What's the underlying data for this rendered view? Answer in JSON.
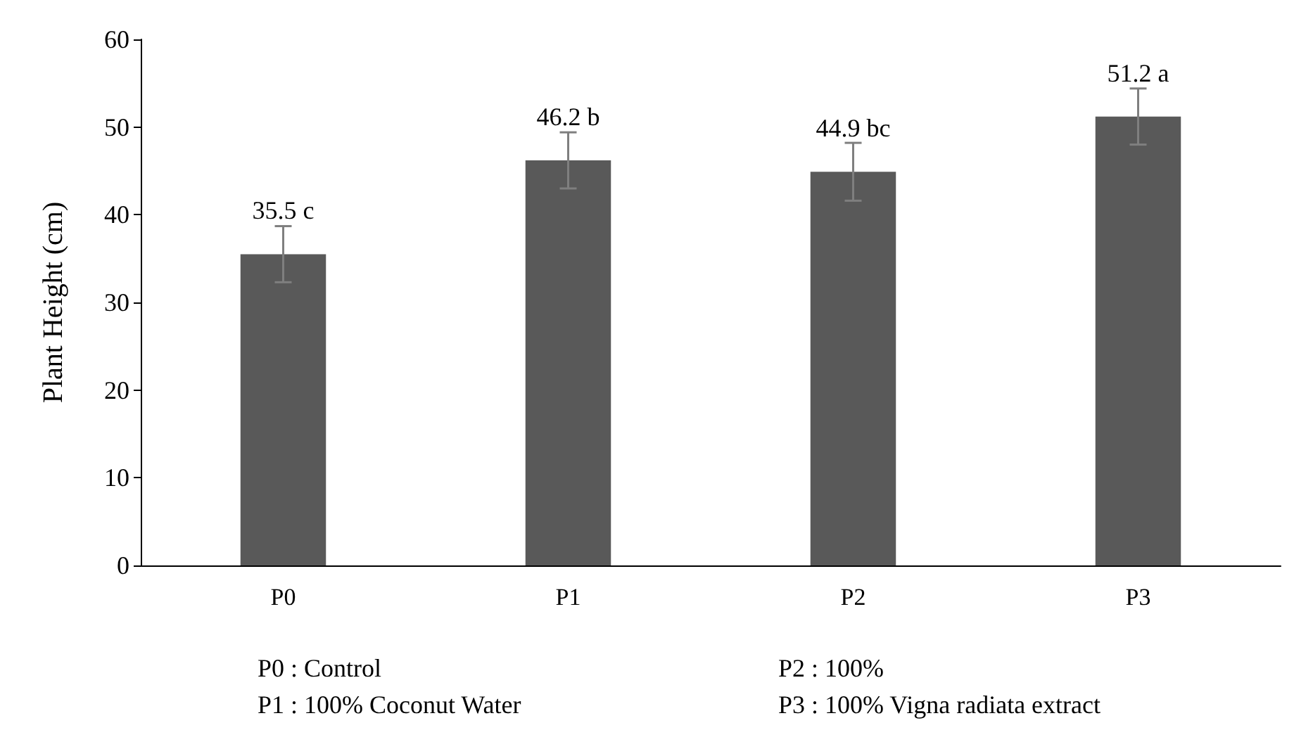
{
  "chart_data": {
    "type": "bar",
    "ylabel": "Plant Height (cm)",
    "categories": [
      "P0",
      "P1",
      "P2",
      "P3"
    ],
    "values": [
      35.5,
      46.2,
      44.9,
      51.2
    ],
    "errors": [
      3.2,
      3.2,
      3.3,
      3.2
    ],
    "value_labels": [
      "35.5 c",
      "46.2 b",
      "44.9 bc",
      "51.2 a"
    ],
    "color": "#595959",
    "ylim": [
      0,
      60
    ],
    "yticks": [
      0,
      10,
      20,
      30,
      40,
      50,
      60
    ],
    "grid": false,
    "annotations": [
      "P0 : Control",
      "P1 : 100% Coconut Water",
      "P2 : 100%",
      "P3 : 100% Vigna radiata extract"
    ]
  }
}
